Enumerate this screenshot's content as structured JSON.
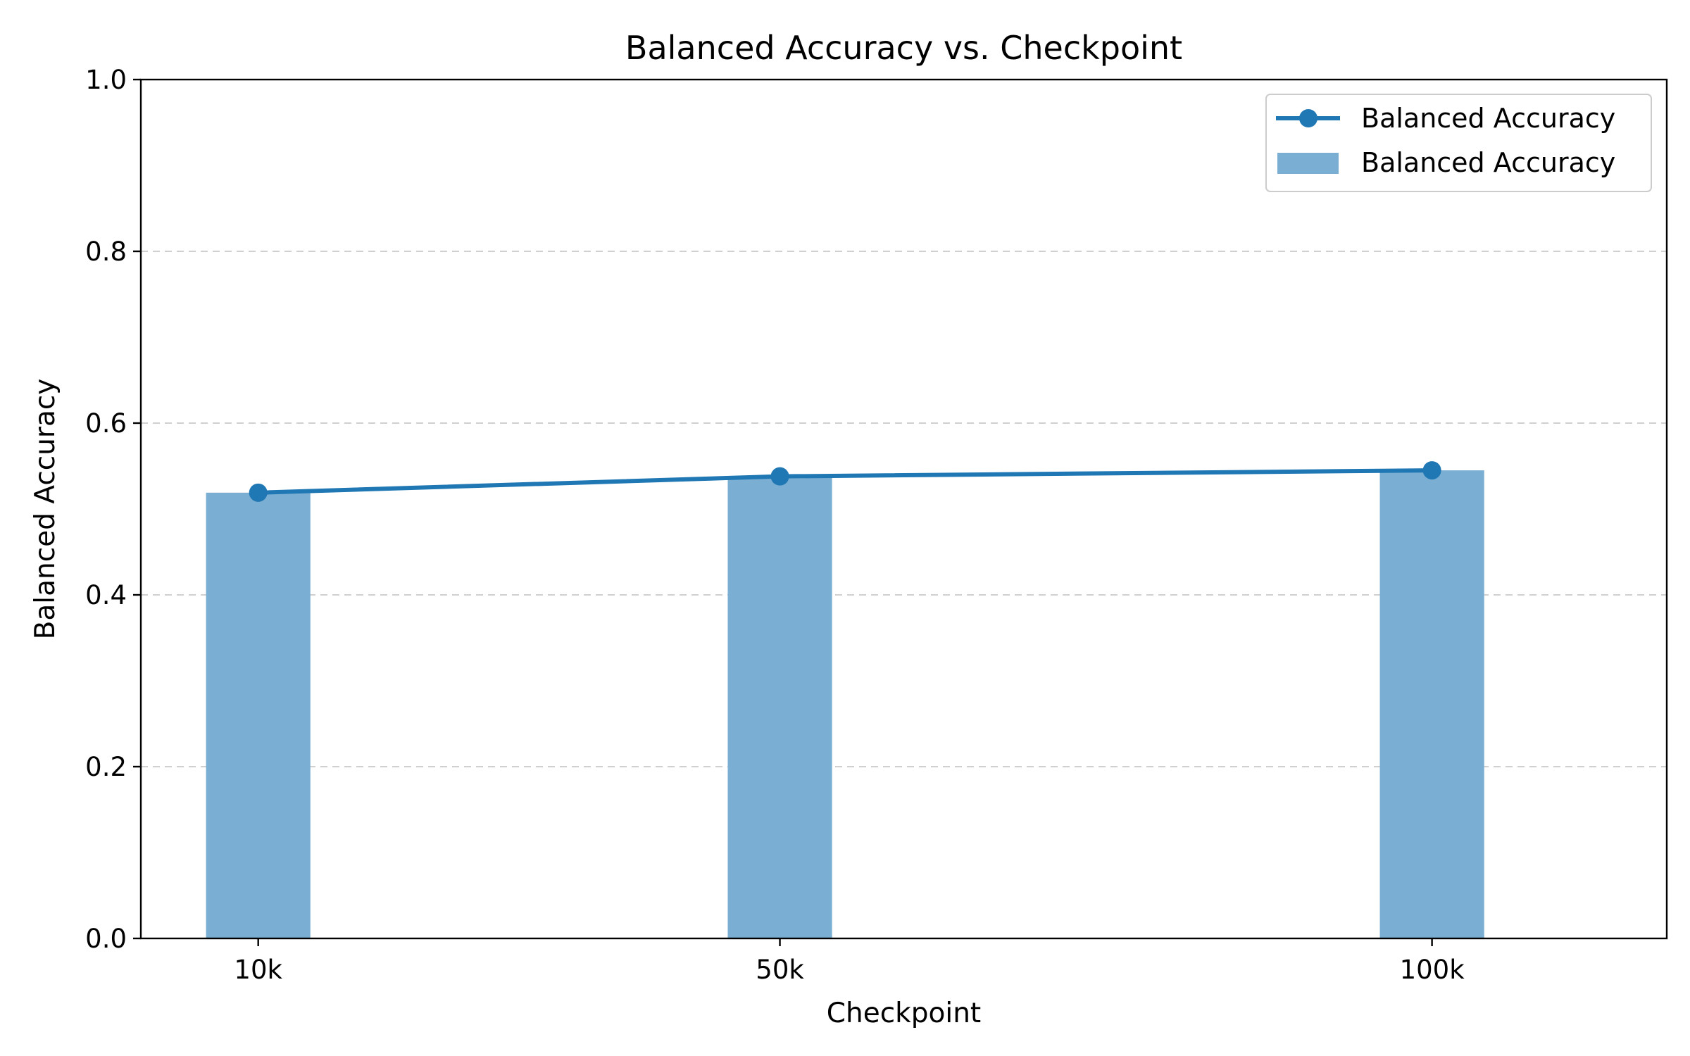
{
  "chart_data": {
    "type": "bar",
    "title": "Balanced Accuracy vs. Checkpoint",
    "xlabel": "Checkpoint",
    "ylabel": "Balanced Accuracy",
    "categories": [
      "10k",
      "50k",
      "100k"
    ],
    "x": [
      10,
      50,
      100
    ],
    "xlim": [
      1,
      118
    ],
    "ylim": [
      0,
      1.0
    ],
    "yticks": [
      "0.0",
      "0.2",
      "0.4",
      "0.6",
      "0.8",
      "1.0"
    ],
    "grid": "horizontal dashed",
    "legend_position": "top-right",
    "series": [
      {
        "name": "Balanced Accuracy",
        "type": "line",
        "marker": "circle",
        "color": "#1f77b4",
        "values": [
          0.519,
          0.538,
          0.545
        ]
      },
      {
        "name": "Balanced Accuracy",
        "type": "bar",
        "color": "#7aaed2",
        "values": [
          0.519,
          0.538,
          0.545
        ]
      }
    ]
  }
}
